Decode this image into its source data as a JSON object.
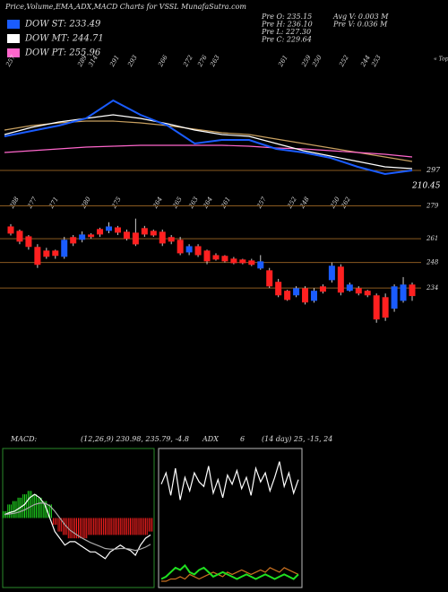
{
  "header": {
    "title": "Price,Volume,EMA,ADX,MACD Charts for VSSL MunafaSutra.com",
    "legend": [
      {
        "label": "DOW ST: 233.49",
        "color": "#1a5cff"
      },
      {
        "label": "DOW MT: 244.71",
        "color": "#ffffff"
      },
      {
        "label": "DOW PT: 255.96",
        "color": "#ff66cc"
      }
    ],
    "info": [
      "Pre O: 235.15",
      "Pre H: 236.10",
      "Pre L: 227.30",
      "Pre C: 229.64",
      "Avg V: 0.003 M",
      "Pre V: 0.036 M"
    ]
  },
  "chart_data": [
    {
      "type": "line",
      "tops": [
        "257",
        "289",
        "314",
        "291",
        "293",
        "266",
        "272",
        "276",
        "263",
        "261",
        "259",
        "250",
        "252",
        "244",
        "253"
      ],
      "tops_label": "« Tops",
      "annotations": [
        "297",
        "210.45"
      ],
      "ylim": [
        0,
        100
      ],
      "categories": [
        null,
        null,
        null,
        null,
        null,
        null,
        null,
        null,
        null,
        null,
        null,
        null,
        null,
        null,
        null,
        null
      ],
      "series": [
        {
          "color": "#c8a060",
          "values": [
            58.3,
            62.5,
            65,
            66.7,
            66.7,
            65,
            62.5,
            59.2,
            55.8,
            54.2,
            50,
            45.8,
            41.7,
            37.5,
            33.3,
            29.2
          ]
        },
        {
          "color": "#ff66cc",
          "values": [
            37.5,
            39.2,
            40.8,
            42.5,
            43.3,
            44.2,
            44.2,
            44.2,
            44.2,
            43.3,
            41.7,
            40.8,
            39.2,
            37.5,
            35.8,
            33.3
          ]
        },
        {
          "color": "#ffffff",
          "values": [
            54.2,
            60.8,
            65.8,
            69.2,
            72.5,
            69.2,
            64.2,
            58.3,
            54.2,
            52.5,
            45.8,
            39.2,
            34.2,
            29.2,
            24.2,
            22.5
          ]
        },
        {
          "color": "#1a5cff",
          "values": [
            52.5,
            57.5,
            62.5,
            69.2,
            85.8,
            72.5,
            62.5,
            45.8,
            49.2,
            49.2,
            40.8,
            37.5,
            32.5,
            24.2,
            17.5,
            20.8
          ]
        }
      ]
    },
    {
      "type": "candlestick",
      "bottoms": [
        "288",
        "277",
        "271",
        "280",
        "275",
        "264",
        "265",
        "263",
        "264",
        "261",
        "257",
        "252",
        "248",
        "250",
        "262"
      ],
      "ylim": [
        210,
        291
      ],
      "yticks": [
        279,
        261,
        248,
        234
      ],
      "up_color": "#1a5cff",
      "down_color": "#ff2020",
      "open": [
        267.7,
        265.3,
        262.3,
        256.5,
        254.5,
        254.5,
        251.1,
        261.9,
        260.4,
        263.3,
        266.3,
        265.3,
        267.2,
        264.8,
        264.3,
        266.8,
        265.3,
        264.8,
        261.9,
        260.4,
        253.5,
        256.9,
        254.5,
        252,
        251.6,
        250.1,
        249.6,
        249.1,
        244.7,
        243.7,
        237.4,
        232.5,
        230,
        233.9,
        227,
        234.9,
        238.3,
        245.7,
        232.5,
        233.9,
        232.5,
        230,
        229,
        222.7,
        227,
        235.9
      ],
      "high": [
        269,
        266,
        263,
        258,
        256,
        255,
        262,
        263,
        265,
        264,
        267,
        270,
        268,
        266,
        272,
        268,
        266,
        266,
        263,
        262,
        258,
        258,
        255,
        253,
        252,
        251,
        250,
        250,
        252,
        245,
        239,
        233,
        235,
        235,
        234,
        236,
        248,
        247,
        237,
        235,
        233,
        231,
        231,
        236,
        240,
        237
      ],
      "low": [
        262.8,
        258,
        255,
        245,
        250,
        250,
        250,
        257,
        259,
        261,
        262,
        264,
        263,
        260,
        257,
        262,
        262,
        257,
        258,
        252,
        252,
        251,
        247,
        249,
        248,
        247,
        247,
        246,
        244,
        234,
        229,
        227,
        229,
        225,
        226,
        231,
        237,
        230,
        232,
        230,
        229,
        215,
        216,
        221,
        226,
        227
      ],
      "close": [
        263.8,
        259.4,
        256.5,
        246.7,
        251.1,
        251.6,
        260.4,
        258.4,
        263.3,
        261.9,
        263.3,
        267.7,
        264.3,
        260.9,
        257.9,
        263.3,
        262.8,
        258.4,
        259.4,
        253,
        256.9,
        252,
        248.6,
        249.6,
        248.6,
        247.6,
        247.6,
        246.7,
        248.6,
        234.9,
        230,
        227.5,
        233.9,
        226.1,
        232.5,
        232,
        246.2,
        231.5,
        235.9,
        231,
        230,
        216.8,
        217.8,
        234.9,
        235.9,
        229.6
      ]
    },
    {
      "type": "macd",
      "label": "MACD:",
      "params": "(12,26,9) 230.98, 235.79, -4.8",
      "ylim": [
        -10,
        10
      ],
      "histogram": [
        1,
        2,
        2.5,
        3,
        3.5,
        4,
        3.5,
        3,
        2.5,
        2,
        -1,
        -2,
        -2.5,
        -3,
        -3,
        -3,
        -3,
        -2.5,
        -2.5,
        -2.5,
        -2.5,
        -2.5,
        -2.5,
        -2.5,
        -2.5,
        -2.5,
        -2.5,
        -2.5,
        -2.5,
        -2
      ],
      "series": [
        {
          "color": "#ffffff",
          "values": [
            0.5,
            0.8,
            1,
            1.5,
            2,
            3,
            3.5,
            3,
            2,
            0,
            -2,
            -3,
            -4,
            -3.5,
            -3.5,
            -4,
            -4.5,
            -5,
            -5,
            -5.5,
            -6,
            -5,
            -4.5,
            -4,
            -4.5,
            -4.8,
            -5.5,
            -4,
            -3,
            -2.5
          ]
        },
        {
          "color": "#aaaaaa",
          "values": [
            0.5,
            0.6,
            0.7,
            0.9,
            1.2,
            1.6,
            2,
            2.2,
            2.2,
            1.8,
            1,
            0,
            -1,
            -1.8,
            -2.3,
            -2.8,
            -3.2,
            -3.6,
            -3.9,
            -4.2,
            -4.5,
            -4.6,
            -4.6,
            -4.5,
            -4.5,
            -4.6,
            -4.8,
            -4.6,
            -4.3,
            -3.9
          ]
        }
      ]
    },
    {
      "type": "adx",
      "label": "ADX",
      "value": "6",
      "params": "(14 day) 25, -15, 24",
      "ylim": [
        0,
        60
      ],
      "series": [
        {
          "color": "#ffffff",
          "values": [
            45,
            50,
            40,
            52,
            38,
            48,
            42,
            50,
            46,
            44,
            53,
            41,
            47,
            39,
            49,
            45,
            51,
            43,
            48,
            40,
            52,
            46,
            50,
            42,
            48,
            55,
            44,
            50,
            41,
            47
          ]
        },
        {
          "color": "#c87020",
          "values": [
            2,
            2,
            3,
            3,
            4,
            3,
            5,
            4,
            3,
            4,
            5,
            6,
            5,
            4,
            6,
            5,
            6,
            7,
            6,
            5,
            6,
            7,
            6,
            8,
            7,
            6,
            8,
            7,
            6,
            5
          ]
        },
        {
          "color": "#20e020",
          "values": [
            3,
            4,
            6,
            8,
            7,
            9,
            6,
            5,
            7,
            8,
            6,
            4,
            5,
            6,
            5,
            4,
            3,
            4,
            5,
            4,
            3,
            4,
            5,
            4,
            3,
            4,
            5,
            4,
            3,
            5
          ]
        }
      ]
    }
  ]
}
